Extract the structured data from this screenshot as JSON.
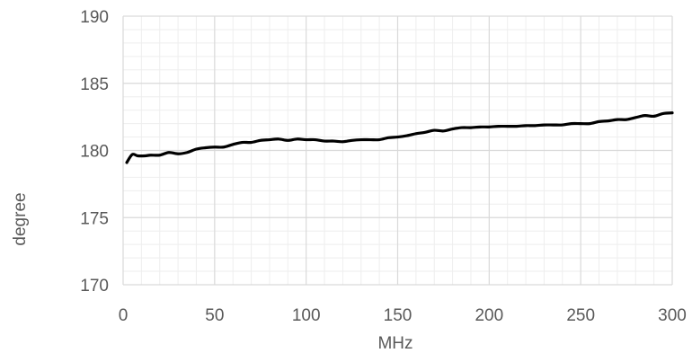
{
  "chart_data": {
    "type": "line",
    "title": "",
    "xlabel": "MHz",
    "ylabel": "degree",
    "xlim": [
      0,
      300
    ],
    "ylim": [
      170,
      190
    ],
    "x_major_step": 50,
    "y_major_step": 5,
    "x_minor_step": 10,
    "y_minor_step": 1,
    "x_ticks": [
      "0",
      "50",
      "100",
      "150",
      "200",
      "250",
      "300"
    ],
    "y_ticks": [
      "170",
      "175",
      "180",
      "185",
      "190"
    ],
    "grid": "major and minor",
    "legend": "none",
    "colors": {
      "line": "#000000",
      "major_grid": "#d9d9d9",
      "minor_grid": "#eeeeee",
      "text": "#595959"
    },
    "series": [
      {
        "x": [
          2,
          5,
          8,
          12,
          15,
          20,
          25,
          30,
          35,
          40,
          45,
          50,
          55,
          60,
          65,
          70,
          75,
          80,
          85,
          90,
          95,
          100,
          105,
          110,
          115,
          120,
          125,
          130,
          135,
          140,
          145,
          150,
          155,
          160,
          165,
          170,
          175,
          180,
          185,
          190,
          195,
          200,
          205,
          210,
          215,
          220,
          225,
          230,
          235,
          240,
          245,
          250,
          255,
          260,
          265,
          270,
          275,
          280,
          285,
          290,
          295,
          300
        ],
        "y": [
          179.1,
          179.7,
          179.6,
          179.6,
          179.65,
          179.65,
          179.85,
          179.75,
          179.85,
          180.1,
          180.2,
          180.25,
          180.25,
          180.45,
          180.6,
          180.6,
          180.75,
          180.8,
          180.85,
          180.75,
          180.85,
          180.8,
          180.8,
          180.7,
          180.7,
          180.65,
          180.75,
          180.8,
          180.8,
          180.8,
          180.95,
          181.0,
          181.1,
          181.25,
          181.35,
          181.5,
          181.45,
          181.6,
          181.7,
          181.7,
          181.75,
          181.75,
          181.8,
          181.8,
          181.8,
          181.85,
          181.85,
          181.9,
          181.9,
          181.9,
          182.0,
          182.0,
          182.0,
          182.15,
          182.2,
          182.3,
          182.3,
          182.45,
          182.6,
          182.55,
          182.75,
          182.8
        ]
      }
    ]
  }
}
